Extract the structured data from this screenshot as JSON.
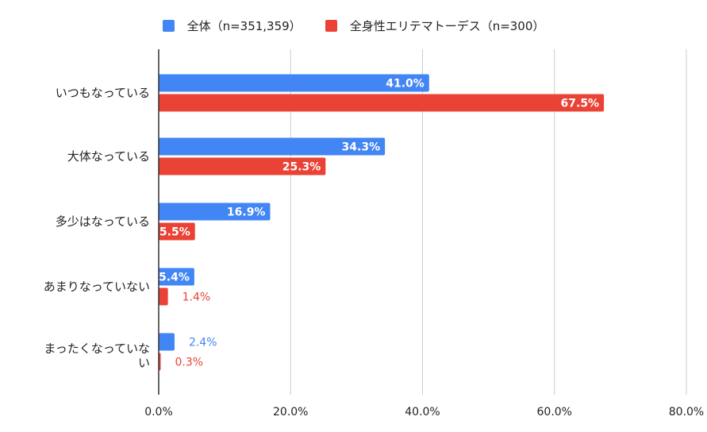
{
  "chart_data": {
    "type": "bar",
    "orientation": "horizontal",
    "categories": [
      "いつもなっている",
      "大体なっている",
      "多少はなっている",
      "あまりなっていない",
      "まったくなっていない"
    ],
    "series": [
      {
        "name": "全体（n=351,359）",
        "color": "#4285F4",
        "values": [
          41.0,
          34.3,
          16.9,
          5.4,
          2.4
        ],
        "labels": [
          "41.0%",
          "34.3%",
          "16.9%",
          "5.4%",
          "2.4%"
        ]
      },
      {
        "name": "全身性エリテマトーデス（n=300）",
        "color": "#EA4335",
        "values": [
          67.5,
          25.3,
          5.5,
          1.4,
          0.3
        ],
        "labels": [
          "67.5%",
          "25.3%",
          "5.5%",
          "1.4%",
          "0.3%"
        ]
      }
    ],
    "xlim": [
      0,
      80
    ],
    "xticks": [
      "0.0%",
      "20.0%",
      "40.0%",
      "60.0%",
      "80.0%"
    ],
    "grid": true,
    "legend": "top-center"
  }
}
